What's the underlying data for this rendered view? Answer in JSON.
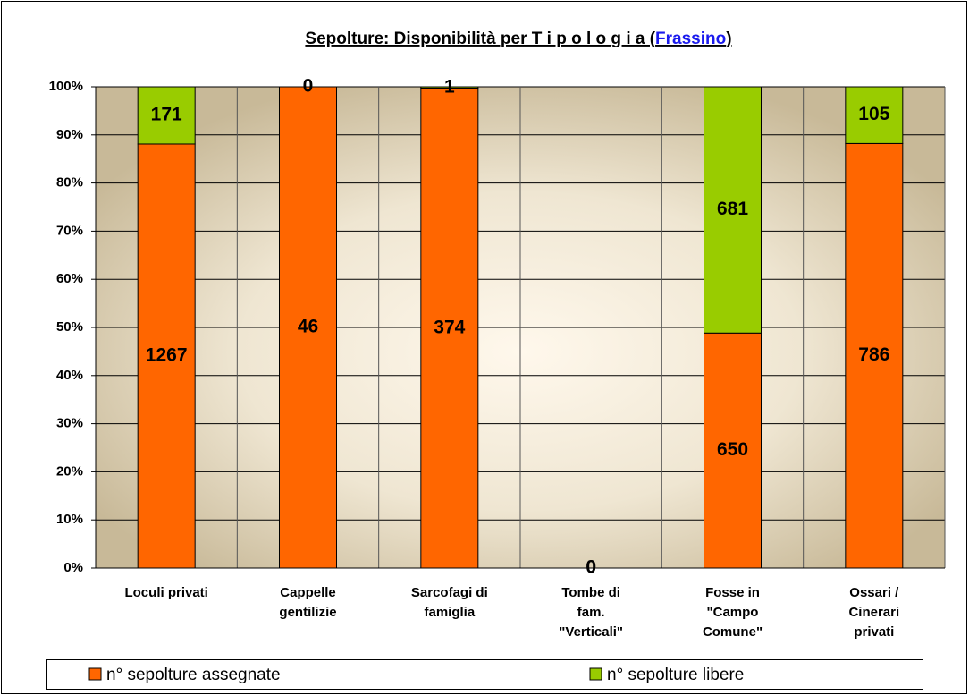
{
  "chart_data": {
    "type": "bar",
    "stacking": "percent",
    "title": {
      "text_before": "Sepolture: Disponibilità per T i p o l o g i a (",
      "link": "Frassino",
      "text_after": ")"
    },
    "categories": [
      [
        "Loculi privati"
      ],
      [
        "Cappelle",
        "gentilizie"
      ],
      [
        "Sarcofagi di",
        "famiglia"
      ],
      [
        "Tombe di",
        "fam.",
        "\"Verticali\""
      ],
      [
        "Fosse in",
        "\"Campo",
        "Comune\""
      ],
      [
        "Ossari /",
        "Cinerari",
        "privati"
      ]
    ],
    "series": [
      {
        "name": "n° sepolture assegnate",
        "color": "#ff6600",
        "values": [
          1267,
          46,
          374,
          0,
          650,
          786
        ]
      },
      {
        "name": "n° sepolture libere",
        "color": "#99cc00",
        "values": [
          171,
          0,
          1,
          0,
          681,
          105
        ]
      }
    ],
    "ylim": [
      0,
      100
    ],
    "yticks": [
      {
        "value": 0,
        "label": "0%"
      },
      {
        "value": 10,
        "label": "10%"
      },
      {
        "value": 20,
        "label": "20%"
      },
      {
        "value": 30,
        "label": "30%"
      },
      {
        "value": 40,
        "label": "40%"
      },
      {
        "value": 50,
        "label": "50%"
      },
      {
        "value": 60,
        "label": "60%"
      },
      {
        "value": 70,
        "label": "70%"
      },
      {
        "value": 80,
        "label": "80%"
      },
      {
        "value": 90,
        "label": "90%"
      },
      {
        "value": 100,
        "label": "100%"
      }
    ],
    "grid": true,
    "legend": "bottom"
  }
}
